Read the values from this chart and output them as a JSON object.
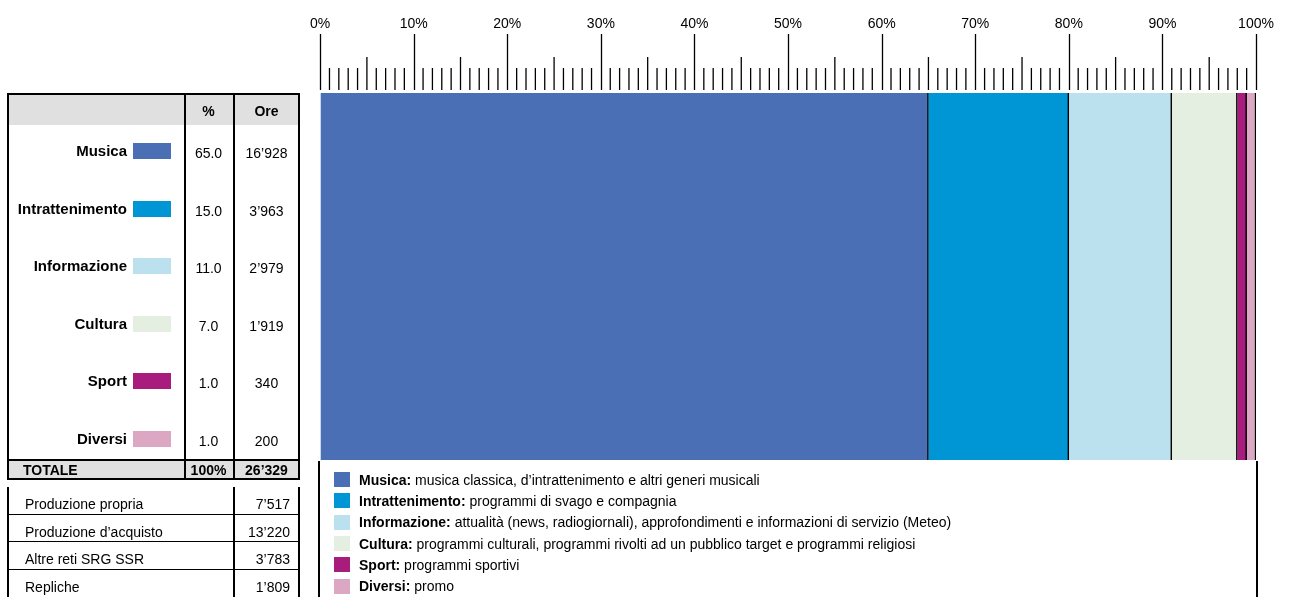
{
  "chart_data": {
    "type": "bar",
    "orientation": "horizontal",
    "stacked": true,
    "categories": [
      null
    ],
    "series": [
      {
        "name": "Musica",
        "color": "#4a6fb5",
        "values": [
          65.0
        ]
      },
      {
        "name": "Intrattenimento",
        "color": "#0095d5",
        "values": [
          15.0
        ]
      },
      {
        "name": "Informazione",
        "color": "#bbe0ee",
        "values": [
          11.0
        ]
      },
      {
        "name": "Cultura",
        "color": "#e4efe2",
        "values": [
          7.0
        ]
      },
      {
        "name": "Sport",
        "color": "#a71c7d",
        "values": [
          1.0
        ]
      },
      {
        "name": "Diversi",
        "color": "#dca7c3",
        "values": [
          1.0
        ]
      }
    ],
    "xlim": [
      0,
      100
    ],
    "xticks": [
      {
        "value": 0,
        "label": "0%"
      },
      {
        "value": 10,
        "label": "10%"
      },
      {
        "value": 20,
        "label": "20%"
      },
      {
        "value": 30,
        "label": "30%"
      },
      {
        "value": 40,
        "label": "40%"
      },
      {
        "value": 50,
        "label": "50%"
      },
      {
        "value": 60,
        "label": "60%"
      },
      {
        "value": 70,
        "label": "70%"
      },
      {
        "value": 80,
        "label": "80%"
      },
      {
        "value": 90,
        "label": "90%"
      },
      {
        "value": 100,
        "label": "100%"
      }
    ],
    "legend": "bottom",
    "annotations": [
      "%",
      "Ore",
      "16’928",
      "3’963",
      "2’979",
      "1’919",
      "340",
      "200",
      "TOTALE",
      "100%",
      "26’329",
      "Produzione propria",
      "7’517",
      "Produzione d’acquisto",
      "13’220",
      "Altre reti SRG SSR",
      "3’783",
      "Repliche",
      "1’809",
      "Musica: musica classica, d’intrattenimento e altri generi musicali",
      "Intrattenimento: programmi di svago e compagnia",
      "Informazione: attualità (news, radiogiornali), approfondimenti e informazioni di servizio (Meteo)",
      "Cultura: programmi culturali, programmi rivolti ad un pubblico target e programmi religiosi",
      "Sport: programmi sportivi",
      "Diversi: promo",
      "65.0",
      "15.0",
      "11.0",
      "7.0",
      "1.0",
      "1.0"
    ]
  }
}
